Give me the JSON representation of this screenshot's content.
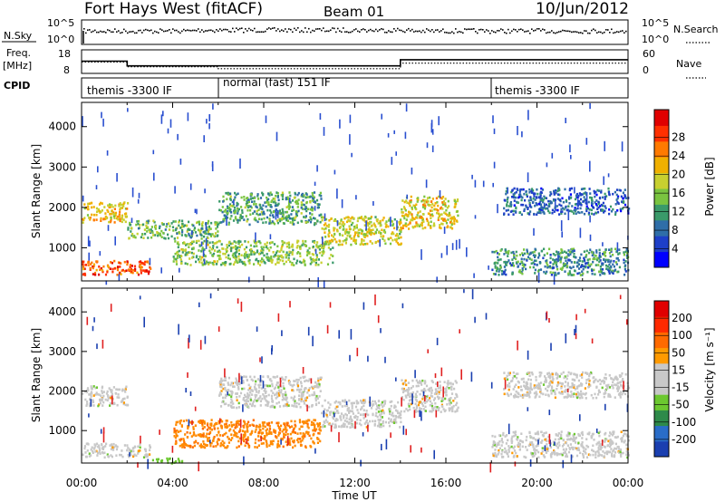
{
  "header": {
    "station": "Fort Hays West (fitACF)",
    "beam": "Beam 01",
    "date": "10/Jun/2012"
  },
  "strip": {
    "nsky_label": "N.Sky",
    "nsky_ticks": [
      "10^5",
      "10^0"
    ],
    "nsearch_label": "N.Search",
    "nsearch_ticks": [
      "10^5",
      "10^0"
    ],
    "freq_label": "Freq.",
    "freq_unit": "[MHz]",
    "freq_ticks": [
      18,
      8
    ],
    "nave_label": "Nave",
    "nave_ticks": [
      60,
      0
    ],
    "cpid_label": "CPID",
    "cpid_segments": [
      {
        "label": "themis -3300 IF",
        "start_h": 0,
        "end_h": 6
      },
      {
        "label": "normal (fast) 151 IF",
        "start_h": 6,
        "end_h": 18
      },
      {
        "label": "themis -3300 IF",
        "start_h": 18,
        "end_h": 24
      }
    ],
    "freq_steps": [
      {
        "start_h": 0,
        "end_h": 2,
        "mhz": 13.2
      },
      {
        "start_h": 2,
        "end_h": 14,
        "mhz": 11.2
      },
      {
        "start_h": 14,
        "end_h": 24,
        "mhz": 13.8
      }
    ],
    "nave_steps": [
      {
        "start_h": 0,
        "end_h": 2,
        "value": 29
      },
      {
        "start_h": 2,
        "end_h": 6,
        "value": 17
      },
      {
        "start_h": 6,
        "end_h": 14,
        "value": 12
      },
      {
        "start_h": 14,
        "end_h": 24,
        "value": 26
      }
    ]
  },
  "chart_data": [
    {
      "type": "heatmap",
      "name": "power",
      "ylabel": "Slant Range [km]",
      "ylim": [
        180,
        4600
      ],
      "xlim": [
        0,
        24
      ],
      "y_ticks": [
        1000,
        2000,
        3000,
        4000
      ],
      "colorbar_label": "Power [dB]",
      "colorbar_ticks": [
        4,
        8,
        12,
        16,
        20,
        24,
        28
      ],
      "colorbar_colors": [
        "#0000ff",
        "#1e3fc8",
        "#2f6ea8",
        "#3a9a6a",
        "#7ac440",
        "#c8d030",
        "#f0b000",
        "#ff7a00",
        "#ff3000",
        "#e00000"
      ],
      "echo_regions": [
        {
          "start_h": 0.0,
          "end_h": 2.0,
          "range_lo": 1650,
          "range_hi": 2150,
          "level": 0.65
        },
        {
          "start_h": 0.0,
          "end_h": 3.0,
          "range_lo": 350,
          "range_hi": 700,
          "level": 0.85
        },
        {
          "start_h": 2.0,
          "end_h": 6.0,
          "range_lo": 1250,
          "range_hi": 1700,
          "level": 0.4
        },
        {
          "start_h": 6.0,
          "end_h": 10.5,
          "range_lo": 1600,
          "range_hi": 2400,
          "level": 0.35
        },
        {
          "start_h": 4.0,
          "end_h": 11.0,
          "range_lo": 600,
          "range_hi": 1200,
          "level": 0.45
        },
        {
          "start_h": 10.5,
          "end_h": 14.0,
          "range_lo": 1100,
          "range_hi": 1800,
          "level": 0.55
        },
        {
          "start_h": 14.0,
          "end_h": 16.5,
          "range_lo": 1500,
          "range_hi": 2300,
          "level": 0.6
        },
        {
          "start_h": 18.5,
          "end_h": 24.0,
          "range_lo": 1850,
          "range_hi": 2500,
          "level": 0.2
        },
        {
          "start_h": 18.0,
          "end_h": 24.0,
          "range_lo": 350,
          "range_hi": 1000,
          "level": 0.3
        }
      ]
    },
    {
      "type": "heatmap",
      "name": "velocity",
      "ylabel": "Slant Range [km]",
      "xlabel": "Time UT",
      "ylim": [
        180,
        4600
      ],
      "xlim": [
        0,
        24
      ],
      "y_ticks": [
        1000,
        2000,
        3000,
        4000
      ],
      "x_ticks": [
        "00:00",
        "04:00",
        "08:00",
        "12:00",
        "16:00",
        "20:00",
        "00:00"
      ],
      "colorbar_label": "Velocity [m s⁻¹]",
      "colorbar_ticks": [
        200,
        100,
        50,
        15,
        -15,
        -50,
        -100,
        -200
      ],
      "colorbar_colors": [
        "#1a3fb0",
        "#2a6dc8",
        "#2e8a4a",
        "#6cc830",
        "#c8c8c8",
        "#c8c8c8",
        "#ff9a00",
        "#ff6a00",
        "#ff2a00",
        "#e00000"
      ],
      "echo_regions": [
        {
          "start_h": 0.0,
          "end_h": 2.0,
          "range_lo": 1650,
          "range_hi": 2150,
          "class": "ground"
        },
        {
          "start_h": 0.0,
          "end_h": 3.0,
          "range_lo": 350,
          "range_hi": 700,
          "class": "ground"
        },
        {
          "start_h": 3.0,
          "end_h": 4.5,
          "range_lo": 200,
          "range_hi": 330,
          "class": "toward-slow"
        },
        {
          "start_h": 6.0,
          "end_h": 10.5,
          "range_lo": 1600,
          "range_hi": 2400,
          "class": "ground"
        },
        {
          "start_h": 4.0,
          "end_h": 10.5,
          "range_lo": 600,
          "range_hi": 1300,
          "class": "away-med"
        },
        {
          "start_h": 10.5,
          "end_h": 14.0,
          "range_lo": 1100,
          "range_hi": 1800,
          "class": "ground"
        },
        {
          "start_h": 14.0,
          "end_h": 16.5,
          "range_lo": 1500,
          "range_hi": 2300,
          "class": "ground"
        },
        {
          "start_h": 18.5,
          "end_h": 24.0,
          "range_lo": 1850,
          "range_hi": 2500,
          "class": "ground"
        },
        {
          "start_h": 18.0,
          "end_h": 24.0,
          "range_lo": 350,
          "range_hi": 1000,
          "class": "ground"
        }
      ]
    }
  ]
}
